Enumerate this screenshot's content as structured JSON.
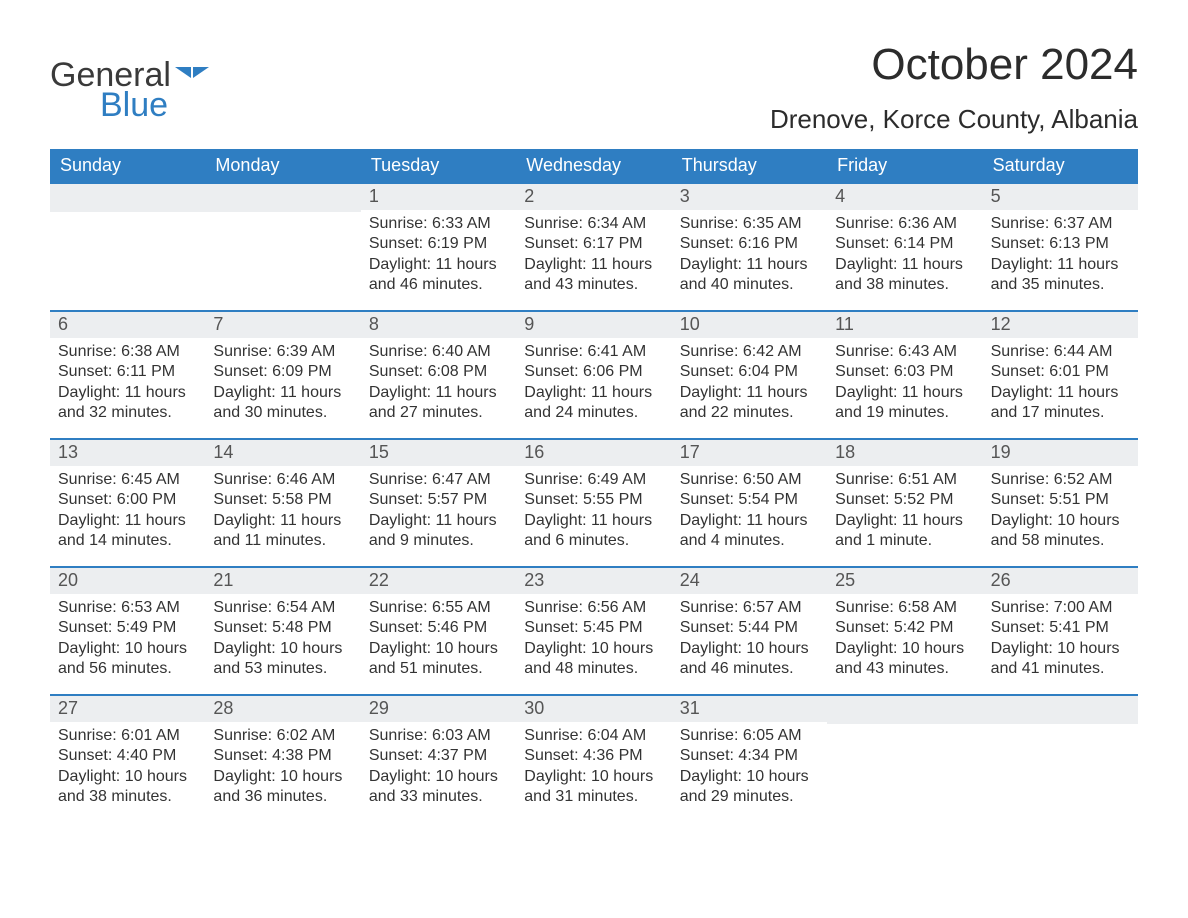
{
  "brand": {
    "name_part1": "General",
    "name_part2": "Blue",
    "flag_color": "#2f7ec2"
  },
  "header": {
    "month_title": "October 2024",
    "location": "Drenove, Korce County, Albania"
  },
  "colors": {
    "header_bg": "#2f7ec2",
    "header_text": "#ffffff",
    "daynum_bg": "#eceef0",
    "week_divider": "#2f7ec2",
    "body_text": "#333333",
    "page_bg": "#ffffff"
  },
  "typography": {
    "title_fontsize": 44,
    "location_fontsize": 26,
    "dow_fontsize": 18,
    "daynum_fontsize": 18,
    "body_fontsize": 16,
    "logo_fontsize": 34
  },
  "days_of_week": [
    "Sunday",
    "Monday",
    "Tuesday",
    "Wednesday",
    "Thursday",
    "Friday",
    "Saturday"
  ],
  "sunrise_label": "Sunrise:",
  "sunset_label": "Sunset:",
  "daylight_label": "Daylight:",
  "weeks": [
    [
      null,
      null,
      {
        "n": "1",
        "sunrise": "6:33 AM",
        "sunset": "6:19 PM",
        "daylight": "11 hours and 46 minutes."
      },
      {
        "n": "2",
        "sunrise": "6:34 AM",
        "sunset": "6:17 PM",
        "daylight": "11 hours and 43 minutes."
      },
      {
        "n": "3",
        "sunrise": "6:35 AM",
        "sunset": "6:16 PM",
        "daylight": "11 hours and 40 minutes."
      },
      {
        "n": "4",
        "sunrise": "6:36 AM",
        "sunset": "6:14 PM",
        "daylight": "11 hours and 38 minutes."
      },
      {
        "n": "5",
        "sunrise": "6:37 AM",
        "sunset": "6:13 PM",
        "daylight": "11 hours and 35 minutes."
      }
    ],
    [
      {
        "n": "6",
        "sunrise": "6:38 AM",
        "sunset": "6:11 PM",
        "daylight": "11 hours and 32 minutes."
      },
      {
        "n": "7",
        "sunrise": "6:39 AM",
        "sunset": "6:09 PM",
        "daylight": "11 hours and 30 minutes."
      },
      {
        "n": "8",
        "sunrise": "6:40 AM",
        "sunset": "6:08 PM",
        "daylight": "11 hours and 27 minutes."
      },
      {
        "n": "9",
        "sunrise": "6:41 AM",
        "sunset": "6:06 PM",
        "daylight": "11 hours and 24 minutes."
      },
      {
        "n": "10",
        "sunrise": "6:42 AM",
        "sunset": "6:04 PM",
        "daylight": "11 hours and 22 minutes."
      },
      {
        "n": "11",
        "sunrise": "6:43 AM",
        "sunset": "6:03 PM",
        "daylight": "11 hours and 19 minutes."
      },
      {
        "n": "12",
        "sunrise": "6:44 AM",
        "sunset": "6:01 PM",
        "daylight": "11 hours and 17 minutes."
      }
    ],
    [
      {
        "n": "13",
        "sunrise": "6:45 AM",
        "sunset": "6:00 PM",
        "daylight": "11 hours and 14 minutes."
      },
      {
        "n": "14",
        "sunrise": "6:46 AM",
        "sunset": "5:58 PM",
        "daylight": "11 hours and 11 minutes."
      },
      {
        "n": "15",
        "sunrise": "6:47 AM",
        "sunset": "5:57 PM",
        "daylight": "11 hours and 9 minutes."
      },
      {
        "n": "16",
        "sunrise": "6:49 AM",
        "sunset": "5:55 PM",
        "daylight": "11 hours and 6 minutes."
      },
      {
        "n": "17",
        "sunrise": "6:50 AM",
        "sunset": "5:54 PM",
        "daylight": "11 hours and 4 minutes."
      },
      {
        "n": "18",
        "sunrise": "6:51 AM",
        "sunset": "5:52 PM",
        "daylight": "11 hours and 1 minute."
      },
      {
        "n": "19",
        "sunrise": "6:52 AM",
        "sunset": "5:51 PM",
        "daylight": "10 hours and 58 minutes."
      }
    ],
    [
      {
        "n": "20",
        "sunrise": "6:53 AM",
        "sunset": "5:49 PM",
        "daylight": "10 hours and 56 minutes."
      },
      {
        "n": "21",
        "sunrise": "6:54 AM",
        "sunset": "5:48 PM",
        "daylight": "10 hours and 53 minutes."
      },
      {
        "n": "22",
        "sunrise": "6:55 AM",
        "sunset": "5:46 PM",
        "daylight": "10 hours and 51 minutes."
      },
      {
        "n": "23",
        "sunrise": "6:56 AM",
        "sunset": "5:45 PM",
        "daylight": "10 hours and 48 minutes."
      },
      {
        "n": "24",
        "sunrise": "6:57 AM",
        "sunset": "5:44 PM",
        "daylight": "10 hours and 46 minutes."
      },
      {
        "n": "25",
        "sunrise": "6:58 AM",
        "sunset": "5:42 PM",
        "daylight": "10 hours and 43 minutes."
      },
      {
        "n": "26",
        "sunrise": "7:00 AM",
        "sunset": "5:41 PM",
        "daylight": "10 hours and 41 minutes."
      }
    ],
    [
      {
        "n": "27",
        "sunrise": "6:01 AM",
        "sunset": "4:40 PM",
        "daylight": "10 hours and 38 minutes."
      },
      {
        "n": "28",
        "sunrise": "6:02 AM",
        "sunset": "4:38 PM",
        "daylight": "10 hours and 36 minutes."
      },
      {
        "n": "29",
        "sunrise": "6:03 AM",
        "sunset": "4:37 PM",
        "daylight": "10 hours and 33 minutes."
      },
      {
        "n": "30",
        "sunrise": "6:04 AM",
        "sunset": "4:36 PM",
        "daylight": "10 hours and 31 minutes."
      },
      {
        "n": "31",
        "sunrise": "6:05 AM",
        "sunset": "4:34 PM",
        "daylight": "10 hours and 29 minutes."
      },
      null,
      null
    ]
  ]
}
